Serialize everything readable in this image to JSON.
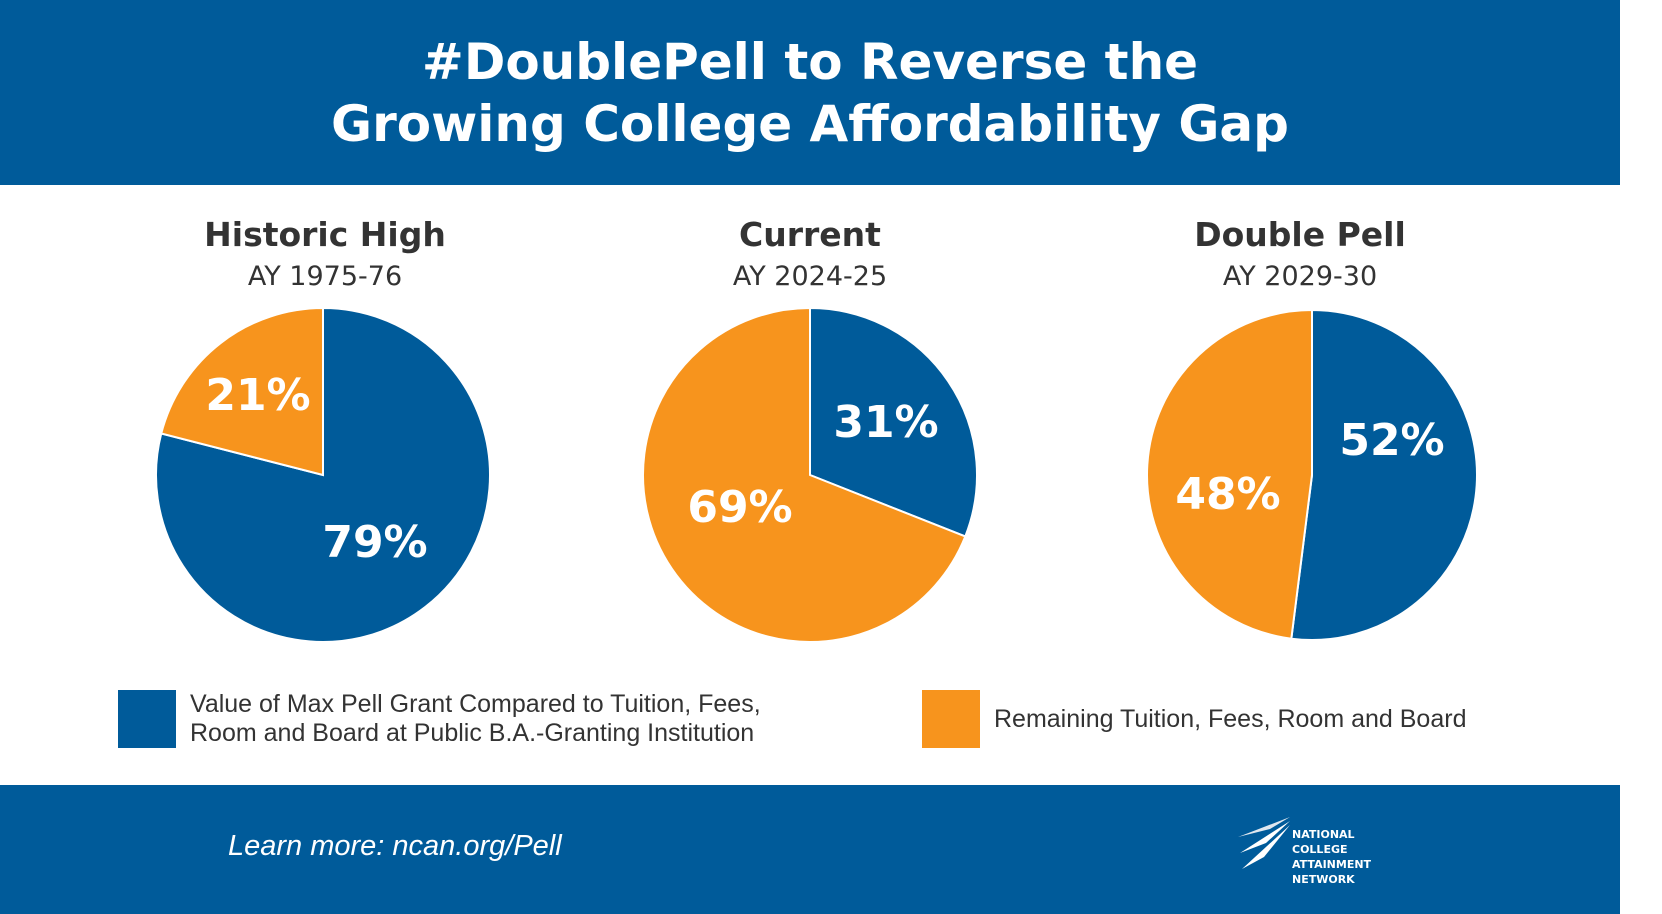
{
  "header": {
    "title_line1": "#DoublePell to Reverse the",
    "title_line2": "Growing College Affordability Gap",
    "background": "#005b9a"
  },
  "colors": {
    "pell": "#005b9a",
    "remaining": "#f7941d"
  },
  "chart_data": [
    {
      "type": "pie",
      "title": "Historic High",
      "subtitle": "AY 1975-76",
      "slices": [
        {
          "label": "79%",
          "value": 79,
          "series": "pell"
        },
        {
          "label": "21%",
          "value": 21,
          "series": "remaining"
        }
      ]
    },
    {
      "type": "pie",
      "title": "Current",
      "subtitle": "AY 2024-25",
      "slices": [
        {
          "label": "31%",
          "value": 31,
          "series": "pell"
        },
        {
          "label": "69%",
          "value": 69,
          "series": "remaining"
        }
      ]
    },
    {
      "type": "pie",
      "title": "Double Pell",
      "subtitle": "AY 2029-30",
      "slices": [
        {
          "label": "52%",
          "value": 52,
          "series": "pell"
        },
        {
          "label": "48%",
          "value": 48,
          "series": "remaining"
        }
      ]
    }
  ],
  "legend": {
    "pell_label": "Value of Max Pell Grant Compared to Tuition, Fees,\nRoom and Board at Public B.A.-Granting Institution",
    "remaining_label": "Remaining Tuition, Fees, Room and Board"
  },
  "footer": {
    "learn_more": "Learn more: ncan.org/Pell",
    "logo_text": "NATIONAL\nCOLLEGE\nATTAINMENT\nNETWORK"
  }
}
